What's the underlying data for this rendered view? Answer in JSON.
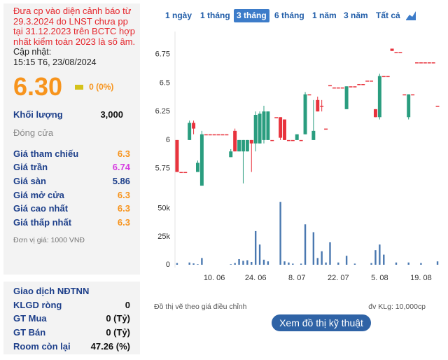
{
  "panel": {
    "warning": "Đưa cp vào diện cảnh báo từ 29.3.2024 do LNST chưa pp tại 31.12.2023 trên BCTC hợp nhất kiểm toán 2023 là số âm.",
    "update_label": "Cập nhật:",
    "update_time": "15:15 T6, 23/08/2024",
    "price": "6.30",
    "change": "0 (0%)",
    "volume_label": "Khối lượng",
    "volume": "3,000",
    "status": "Đóng cửa",
    "stats": [
      {
        "label": "Giá tham chiếu",
        "value": "6.3",
        "color": "#f7941d"
      },
      {
        "label": "Giá trần",
        "value": "6.74",
        "color": "#d63ee0"
      },
      {
        "label": "Giá sàn",
        "value": "5.86",
        "color": "#1d3f8a"
      },
      {
        "label": "Giá mở cửa",
        "value": "6.3",
        "color": "#f7941d"
      },
      {
        "label": "Giá cao nhất",
        "value": "6.3",
        "color": "#f7941d"
      },
      {
        "label": "Giá thấp nhất",
        "value": "6.3",
        "color": "#f7941d"
      }
    ],
    "unit_note": "Đơn vị giá: 1000 VNĐ"
  },
  "foreign": {
    "title": "Giao dịch NĐTNN",
    "rows": [
      {
        "label": "KLGD ròng",
        "value": "0"
      },
      {
        "label": "GT Mua",
        "value": "0 (Tỷ)"
      },
      {
        "label": "GT Bán",
        "value": "0 (Tỷ)"
      },
      {
        "label": "Room còn lại",
        "value": "47.26 (%)"
      }
    ]
  },
  "tabs": {
    "items": [
      "1 ngày",
      "1 tháng",
      "3 tháng",
      "6 tháng",
      "1 năm",
      "3 năm",
      "Tất cả"
    ],
    "active": 2
  },
  "chart_data": {
    "type": "candlestick",
    "categories": [
      null,
      null,
      null,
      null,
      null,
      null,
      null,
      null,
      null,
      "10. 06",
      null,
      null,
      null,
      null,
      null,
      null,
      null,
      null,
      null,
      "24. 06",
      null,
      null,
      null,
      null,
      null,
      null,
      null,
      null,
      null,
      "8. 07",
      null,
      null,
      null,
      null,
      null,
      null,
      null,
      null,
      null,
      "22. 07",
      null,
      null,
      null,
      null,
      null,
      null,
      null,
      null,
      null,
      "5. 08",
      null,
      null,
      null,
      null,
      null,
      null,
      null,
      null,
      null,
      "19. 08",
      null,
      null,
      null,
      null
    ],
    "open": [
      6.0,
      5.72,
      5.72,
      6.0,
      6.15,
      5.72,
      5.6,
      6.05,
      6.05,
      6.05,
      6.05,
      6.05,
      6.05,
      5.85,
      6.08,
      5.9,
      5.9,
      5.9,
      6.0,
      5.97,
      5.97,
      6.0,
      6.0,
      6.0,
      6.2,
      6.2,
      6.18,
      6.0,
      6.0,
      6.0,
      6.0,
      6.05,
      6.4,
      6.0,
      6.35,
      6.3,
      6.1,
      6.48,
      6.46,
      6.46,
      6.46,
      6.27,
      6.47,
      6.47,
      6.49,
      6.49,
      6.52,
      6.52,
      6.27,
      6.2,
      6.56,
      6.56,
      6.8,
      6.77,
      6.77,
      6.4,
      6.2,
      6.4,
      6.68,
      6.68,
      6.68,
      6.68,
      6.68,
      6.3
    ],
    "high": [
      6.0,
      5.72,
      5.72,
      6.17,
      6.17,
      5.82,
      6.08,
      6.05,
      6.05,
      6.05,
      6.05,
      6.05,
      6.05,
      5.92,
      6.1,
      6.0,
      6.0,
      6.0,
      6.0,
      6.25,
      6.25,
      6.3,
      6.25,
      6.0,
      6.2,
      6.2,
      6.18,
      6.0,
      6.0,
      6.05,
      6.0,
      6.42,
      6.4,
      6.35,
      6.38,
      6.35,
      6.1,
      6.48,
      6.46,
      6.46,
      6.46,
      6.47,
      6.47,
      6.47,
      6.49,
      6.49,
      6.52,
      6.52,
      6.27,
      6.58,
      6.56,
      6.56,
      6.8,
      6.77,
      6.77,
      6.4,
      6.4,
      6.4,
      6.68,
      6.68,
      6.68,
      6.68,
      6.68,
      6.3
    ],
    "low": [
      5.72,
      5.72,
      5.72,
      6.0,
      6.05,
      5.72,
      5.6,
      6.05,
      6.05,
      6.05,
      6.05,
      6.05,
      6.05,
      5.85,
      5.9,
      5.9,
      5.62,
      5.9,
      5.72,
      5.9,
      5.97,
      5.97,
      6.0,
      6.0,
      6.2,
      6.0,
      6.0,
      6.0,
      6.0,
      6.0,
      6.0,
      6.05,
      6.4,
      6.0,
      6.25,
      6.25,
      6.1,
      6.48,
      6.46,
      6.46,
      6.46,
      6.27,
      6.47,
      6.47,
      6.49,
      6.49,
      6.52,
      6.52,
      6.2,
      6.18,
      6.56,
      6.56,
      6.78,
      6.77,
      6.77,
      6.4,
      6.18,
      6.4,
      6.68,
      6.68,
      6.68,
      6.68,
      6.68,
      6.3
    ],
    "close": [
      5.72,
      5.72,
      5.72,
      6.15,
      6.1,
      5.8,
      6.05,
      6.05,
      6.05,
      6.05,
      6.05,
      6.05,
      6.05,
      5.9,
      5.9,
      6.0,
      6.0,
      6.0,
      5.97,
      6.22,
      6.23,
      6.25,
      6.25,
      6.0,
      6.2,
      6.02,
      6.0,
      6.0,
      6.0,
      6.05,
      6.0,
      6.4,
      6.4,
      6.08,
      6.25,
      6.3,
      6.1,
      6.48,
      6.46,
      6.46,
      6.46,
      6.47,
      6.47,
      6.47,
      6.49,
      6.49,
      6.52,
      6.52,
      6.2,
      6.56,
      6.56,
      6.56,
      6.78,
      6.77,
      6.77,
      6.4,
      6.4,
      6.4,
      6.68,
      6.68,
      6.68,
      6.68,
      6.68,
      6.3
    ],
    "up_color": "#2a9d7f",
    "down_color": "#e8333d",
    "ylim": [
      5.57,
      6.95
    ],
    "yticks": [
      6.75,
      6.5,
      6.25,
      6,
      5.75
    ],
    "volume": {
      "values": [
        1500,
        0,
        0,
        2000,
        1200,
        500,
        6000,
        0,
        0,
        0,
        0,
        0,
        0,
        500,
        1500,
        5000,
        3500,
        4000,
        2500,
        30000,
        18000,
        4500,
        3000,
        0,
        0,
        56000,
        3000,
        2000,
        1000,
        0,
        1000,
        36000,
        0,
        29000,
        6000,
        12000,
        2000,
        20000,
        0,
        2000,
        0,
        8000,
        0,
        1000,
        0,
        0,
        0,
        1500,
        13000,
        18000,
        9000,
        0,
        0,
        2000,
        0,
        0,
        2000,
        0,
        0,
        1500,
        0,
        0,
        0,
        3000
      ],
      "color": "#4a78b0",
      "ylim": [
        0,
        58000
      ],
      "yticks": [
        {
          "value": 50000,
          "label": "50k"
        },
        {
          "value": 25000,
          "label": "25k"
        },
        0
      ]
    }
  },
  "footnote": "Đồ thị vẽ theo giá điều chỉnh",
  "volume_unit": "đv KLg: 10,000cp",
  "button": "Xem đồ thị kỹ thuật"
}
